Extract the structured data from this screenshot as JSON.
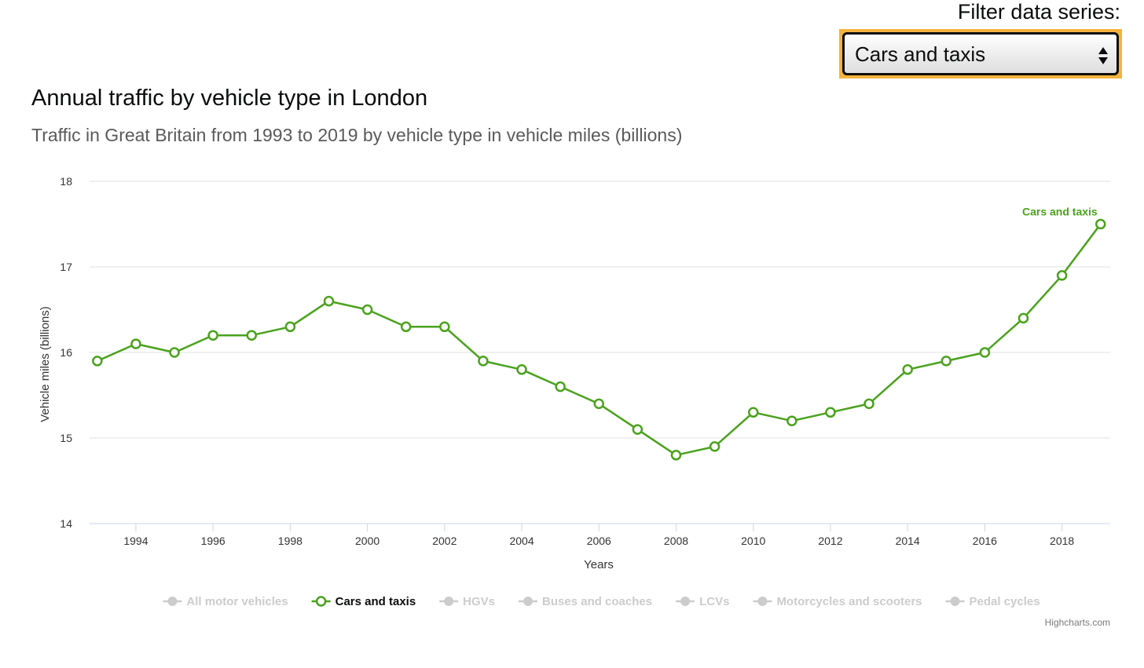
{
  "filter": {
    "label": "Filter data series:",
    "selected": "Cars and taxis"
  },
  "chart_data": {
    "type": "line",
    "title": "Annual traffic by vehicle type in London",
    "subtitle": "Traffic in Great Britain from 1993 to 2019 by vehicle type in vehicle miles (billions)",
    "xlabel": "Years",
    "ylabel": "Vehicle miles (billions)",
    "x": [
      1993,
      1994,
      1995,
      1996,
      1997,
      1998,
      1999,
      2000,
      2001,
      2002,
      2003,
      2004,
      2005,
      2006,
      2007,
      2008,
      2009,
      2010,
      2011,
      2012,
      2013,
      2014,
      2015,
      2016,
      2017,
      2018,
      2019
    ],
    "xticks": [
      1994,
      1996,
      1998,
      2000,
      2002,
      2004,
      2006,
      2008,
      2010,
      2012,
      2014,
      2016,
      2018
    ],
    "xlim": [
      1992.8,
      2019.25
    ],
    "yticks": [
      14,
      15,
      16,
      17,
      18
    ],
    "ylim": [
      14,
      18
    ],
    "grid": true,
    "series": [
      {
        "name": "Cars and taxis",
        "color": "#4aa21d",
        "label": "Cars and taxis",
        "values": [
          15.9,
          16.1,
          16.0,
          16.2,
          16.2,
          16.3,
          16.6,
          16.5,
          16.3,
          16.3,
          15.9,
          15.8,
          15.6,
          15.4,
          15.1,
          14.8,
          14.9,
          15.3,
          15.2,
          15.3,
          15.4,
          15.8,
          15.9,
          16.0,
          16.4,
          16.9,
          17.5
        ]
      }
    ],
    "legend": {
      "placement": "bottom",
      "items": [
        {
          "name": "All motor vehicles",
          "active": false
        },
        {
          "name": "Cars and taxis",
          "active": true
        },
        {
          "name": "HGVs",
          "active": false
        },
        {
          "name": "Buses and coaches",
          "active": false
        },
        {
          "name": "LCVs",
          "active": false
        },
        {
          "name": "Motorcycles and scooters",
          "active": false
        },
        {
          "name": "Pedal cycles",
          "active": false
        }
      ]
    },
    "colors": {
      "active_series": "#4aa21d",
      "inactive_legend": "#cccccc",
      "grid": "#e0e0e0",
      "axis": "#ccd6eb",
      "tick_text": "#333333"
    }
  },
  "credits": "Highcharts.com"
}
